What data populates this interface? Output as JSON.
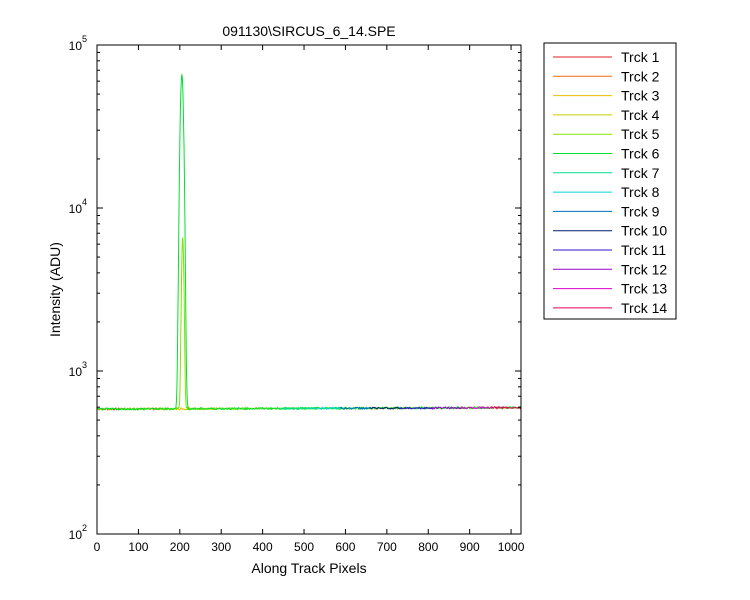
{
  "chart_data": {
    "type": "line",
    "title": "091130\\SIRCUS_6_14.SPE",
    "xlabel": "Along Track Pixels",
    "ylabel": "Intensity (ADU)",
    "xlim": [
      0,
      1024
    ],
    "ylim": [
      100,
      100000
    ],
    "yscale": "log",
    "xticks": [
      0,
      100,
      200,
      300,
      400,
      500,
      600,
      700,
      800,
      900,
      1000
    ],
    "yticks": [
      {
        "base": "10",
        "exp": "2",
        "value": 100
      },
      {
        "base": "10",
        "exp": "3",
        "value": 1000
      },
      {
        "base": "10",
        "exp": "4",
        "value": 10000
      },
      {
        "base": "10",
        "exp": "5",
        "value": 100000
      }
    ],
    "grid": false,
    "legend_position": "outside-top-right",
    "baseline_level": 590,
    "series": [
      {
        "name": "Trck 1",
        "color": "#dd2222",
        "peak": null
      },
      {
        "name": "Trck 2",
        "color": "#ee6a10",
        "peak": null
      },
      {
        "name": "Trck 3",
        "color": "#e8c000",
        "peak": null
      },
      {
        "name": "Trck 4",
        "color": "#cccc00",
        "peak": null
      },
      {
        "name": "Trck 5",
        "color": "#88e000",
        "peak": {
          "x": 207,
          "y": 6000
        }
      },
      {
        "name": "Trck 6",
        "color": "#00e030",
        "peak": {
          "x": 205,
          "y": 65000
        }
      },
      {
        "name": "Trck 7",
        "color": "#00e090",
        "peak": null
      },
      {
        "name": "Trck 8",
        "color": "#00d8d8",
        "peak": null
      },
      {
        "name": "Trck 9",
        "color": "#0070c0",
        "peak": null
      },
      {
        "name": "Trck 10",
        "color": "#001a70",
        "peak": null
      },
      {
        "name": "Trck 11",
        "color": "#3311cc",
        "peak": null
      },
      {
        "name": "Trck 12",
        "color": "#9900cc",
        "peak": null
      },
      {
        "name": "Trck 13",
        "color": "#dd00cc",
        "peak": null
      },
      {
        "name": "Trck 14",
        "color": "#e8005a",
        "peak": null
      }
    ]
  }
}
